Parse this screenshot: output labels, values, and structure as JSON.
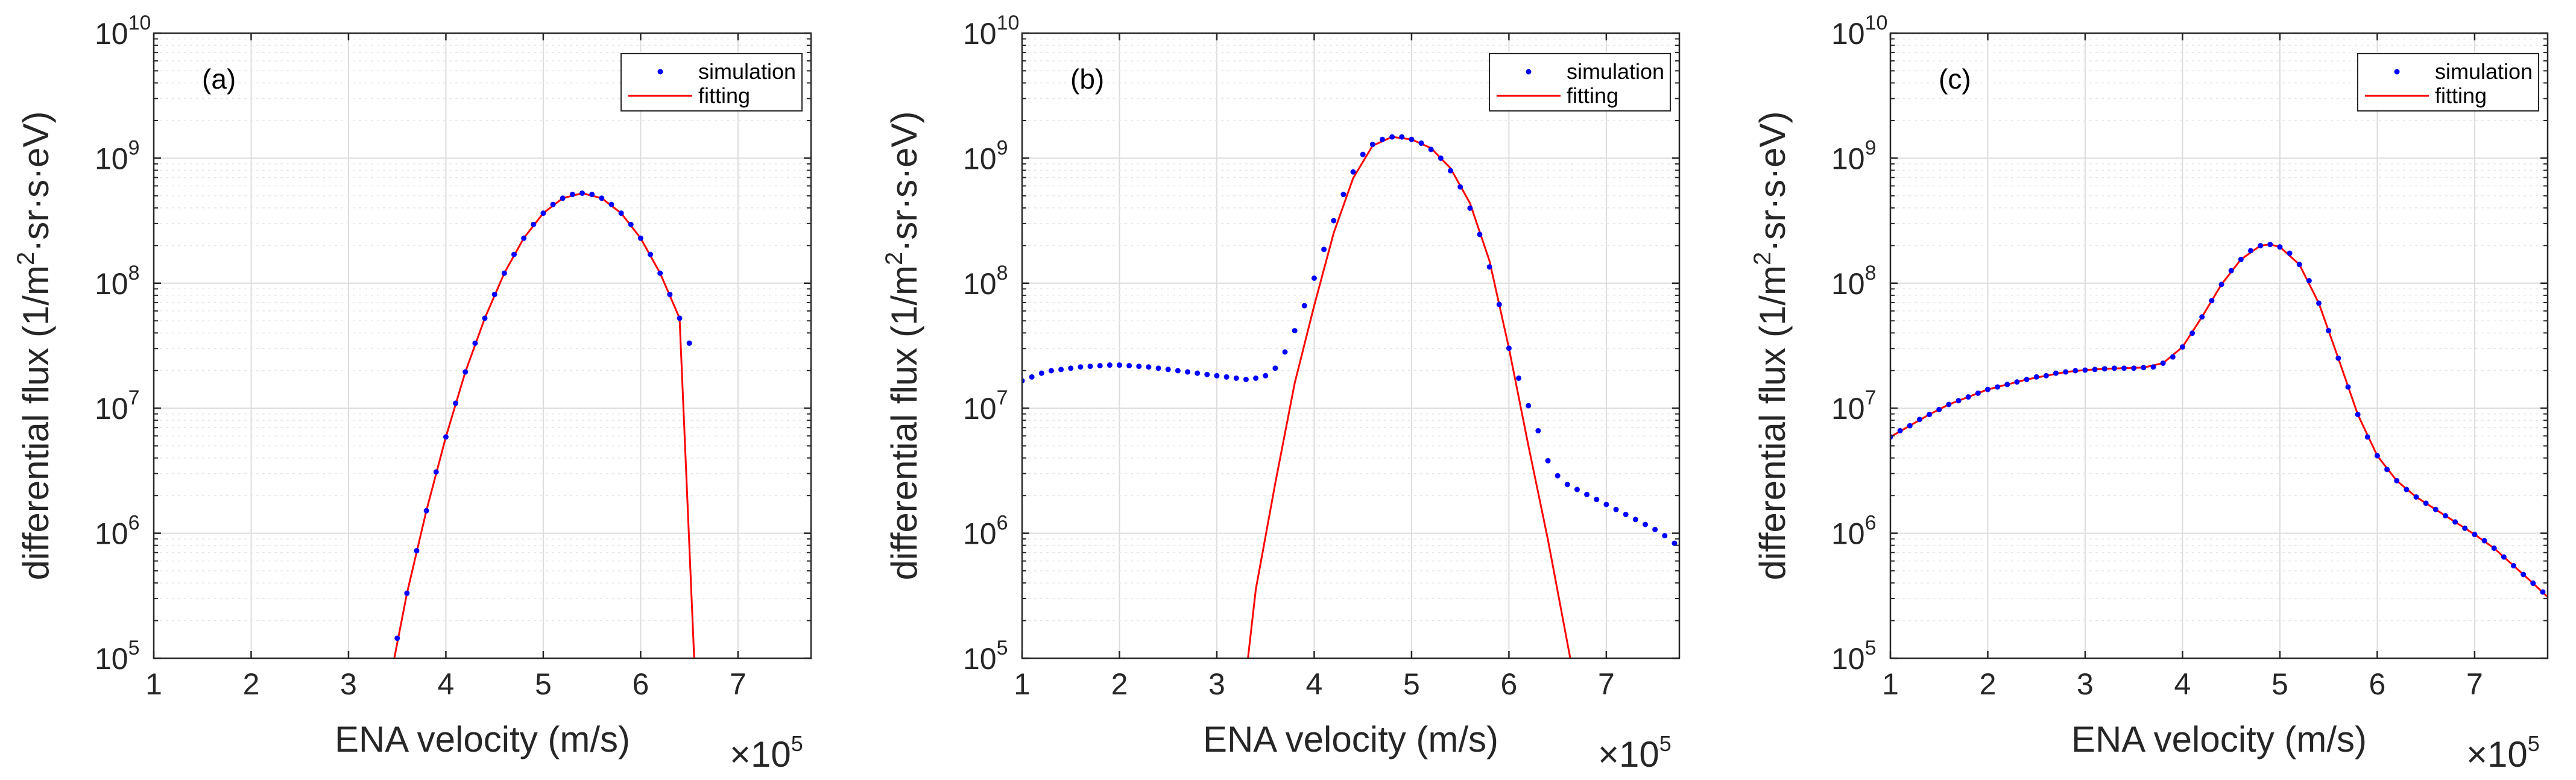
{
  "figure": {
    "x_exponent_prefix": "×10",
    "x_exponent": "5",
    "y_tick_base": "10"
  },
  "chart_data": [
    {
      "type": "scatter",
      "panel_label": "(a)",
      "xlabel": "ENA velocity (m/s)",
      "ylabel_prefix": "differential flux (1/m",
      "ylabel_sup": "2",
      "ylabel_suffix": "·sr·s·eV)",
      "xlim": [
        1,
        7.75
      ],
      "ylim_log10": [
        5,
        10
      ],
      "x_ticks": [
        1,
        2,
        3,
        4,
        5,
        6,
        7
      ],
      "y_ticks_exponent": [
        5,
        6,
        7,
        8,
        9,
        10
      ],
      "grid": true,
      "legend": {
        "position": "top-right",
        "entries": [
          "simulation",
          "fitting"
        ]
      },
      "series": [
        {
          "name": "simulation",
          "style": "dots",
          "color": "#0000ff",
          "x": [
            3.5,
            3.6,
            3.7,
            3.8,
            3.9,
            4.0,
            4.1,
            4.2,
            4.3,
            4.4,
            4.5,
            4.6,
            4.7,
            4.8,
            4.9,
            5.0,
            5.1,
            5.2,
            5.3,
            5.4,
            5.5,
            5.6,
            5.7,
            5.8,
            5.9,
            6.0,
            6.1,
            6.2,
            6.3,
            6.4,
            6.5
          ],
          "log10_y": [
            5.16,
            5.52,
            5.86,
            6.18,
            6.49,
            6.77,
            7.04,
            7.29,
            7.52,
            7.72,
            7.91,
            8.08,
            8.23,
            8.36,
            8.47,
            8.56,
            8.63,
            8.68,
            8.71,
            8.72,
            8.71,
            8.68,
            8.63,
            8.56,
            8.47,
            8.36,
            8.23,
            8.08,
            7.91,
            7.72,
            7.52
          ]
        },
        {
          "name": "fitting",
          "style": "line",
          "color": "#ff0000",
          "x": [
            3.47,
            3.6,
            3.8,
            4.0,
            4.2,
            4.4,
            4.6,
            4.8,
            5.0,
            5.2,
            5.4,
            5.6,
            5.8,
            6.0,
            6.2,
            6.4,
            6.55
          ],
          "log10_y": [
            5.0,
            5.52,
            6.18,
            6.77,
            7.29,
            7.72,
            8.08,
            8.36,
            8.56,
            8.68,
            8.72,
            8.68,
            8.56,
            8.36,
            8.08,
            7.72,
            5.0
          ]
        }
      ]
    },
    {
      "type": "scatter",
      "panel_label": "(b)",
      "xlabel": "ENA velocity (m/s)",
      "ylabel_prefix": "differential flux (1/m",
      "ylabel_sup": "2",
      "ylabel_suffix": "·sr·s·eV)",
      "xlim": [
        1,
        7.75
      ],
      "ylim_log10": [
        5,
        10
      ],
      "x_ticks": [
        1,
        2,
        3,
        4,
        5,
        6,
        7
      ],
      "y_ticks_exponent": [
        5,
        6,
        7,
        8,
        9,
        10
      ],
      "grid": true,
      "legend": {
        "position": "top-right",
        "entries": [
          "simulation",
          "fitting"
        ]
      },
      "series": [
        {
          "name": "simulation",
          "style": "dots",
          "color": "#0000ff",
          "x": [
            1.0,
            1.1,
            1.2,
            1.3,
            1.4,
            1.5,
            1.6,
            1.7,
            1.8,
            1.9,
            2.0,
            2.1,
            2.2,
            2.3,
            2.4,
            2.5,
            2.6,
            2.7,
            2.8,
            2.9,
            3.0,
            3.1,
            3.2,
            3.3,
            3.4,
            3.5,
            3.6,
            3.7,
            3.8,
            3.9,
            4.0,
            4.1,
            4.2,
            4.3,
            4.4,
            4.5,
            4.6,
            4.7,
            4.8,
            4.9,
            5.0,
            5.1,
            5.2,
            5.3,
            5.4,
            5.5,
            5.6,
            5.7,
            5.8,
            5.9,
            6.0,
            6.1,
            6.2,
            6.3,
            6.4,
            6.5,
            6.6,
            6.7,
            6.8,
            6.9,
            7.0,
            7.1,
            7.2,
            7.3,
            7.4,
            7.5,
            7.6,
            7.7
          ],
          "log10_y": [
            7.22,
            7.25,
            7.28,
            7.3,
            7.31,
            7.32,
            7.33,
            7.335,
            7.34,
            7.345,
            7.345,
            7.34,
            7.335,
            7.33,
            7.32,
            7.31,
            7.3,
            7.29,
            7.28,
            7.27,
            7.26,
            7.25,
            7.24,
            7.23,
            7.24,
            7.26,
            7.32,
            7.45,
            7.62,
            7.82,
            8.04,
            8.27,
            8.5,
            8.71,
            8.89,
            9.03,
            9.11,
            9.15,
            9.17,
            9.17,
            9.15,
            9.12,
            9.07,
            9.0,
            8.9,
            8.77,
            8.6,
            8.39,
            8.13,
            7.83,
            7.48,
            7.24,
            7.02,
            6.82,
            6.58,
            6.46,
            6.39,
            6.35,
            6.31,
            6.27,
            6.23,
            6.19,
            6.15,
            6.11,
            6.07,
            6.03,
            5.98,
            5.92
          ]
        },
        {
          "name": "fitting",
          "style": "line",
          "color": "#ff0000",
          "x": [
            3.32,
            3.4,
            3.6,
            3.8,
            4.0,
            4.2,
            4.4,
            4.6,
            4.8,
            5.0,
            5.2,
            5.4,
            5.6,
            5.8,
            6.0,
            6.2,
            6.4,
            6.63
          ],
          "log10_y": [
            5.0,
            5.55,
            6.4,
            7.2,
            7.82,
            8.4,
            8.84,
            9.1,
            9.17,
            9.15,
            9.08,
            8.92,
            8.64,
            8.18,
            7.48,
            6.7,
            5.95,
            5.0
          ]
        }
      ]
    },
    {
      "type": "scatter",
      "panel_label": "(c)",
      "xlabel": "ENA velocity (m/s)",
      "ylabel_prefix": "differential flux (1/m",
      "ylabel_sup": "2",
      "ylabel_suffix": "·sr·s·eV)",
      "xlim": [
        1,
        7.75
      ],
      "ylim_log10": [
        5,
        10
      ],
      "x_ticks": [
        1,
        2,
        3,
        4,
        5,
        6,
        7
      ],
      "y_ticks_exponent": [
        5,
        6,
        7,
        8,
        9,
        10
      ],
      "grid": true,
      "legend": {
        "position": "top-right",
        "entries": [
          "simulation",
          "fitting"
        ]
      },
      "series": [
        {
          "name": "simulation",
          "style": "dots",
          "color": "#0000ff",
          "x": [
            1.0,
            1.1,
            1.2,
            1.3,
            1.4,
            1.5,
            1.6,
            1.7,
            1.8,
            1.9,
            2.0,
            2.1,
            2.2,
            2.3,
            2.4,
            2.5,
            2.6,
            2.7,
            2.8,
            2.9,
            3.0,
            3.1,
            3.2,
            3.3,
            3.4,
            3.5,
            3.6,
            3.7,
            3.8,
            3.9,
            4.0,
            4.1,
            4.2,
            4.3,
            4.4,
            4.5,
            4.6,
            4.7,
            4.8,
            4.9,
            5.0,
            5.1,
            5.2,
            5.3,
            5.4,
            5.5,
            5.6,
            5.7,
            5.8,
            5.9,
            6.0,
            6.1,
            6.2,
            6.3,
            6.4,
            6.5,
            6.6,
            6.7,
            6.8,
            6.9,
            7.0,
            7.1,
            7.2,
            7.3,
            7.4,
            7.5,
            7.6,
            7.7
          ],
          "log10_y": [
            6.77,
            6.82,
            6.86,
            6.91,
            6.95,
            6.99,
            7.03,
            7.06,
            7.09,
            7.12,
            7.15,
            7.17,
            7.19,
            7.21,
            7.23,
            7.25,
            7.26,
            7.28,
            7.29,
            7.3,
            7.305,
            7.31,
            7.315,
            7.32,
            7.32,
            7.32,
            7.325,
            7.33,
            7.36,
            7.41,
            7.49,
            7.6,
            7.73,
            7.86,
            7.99,
            8.1,
            8.19,
            8.26,
            8.3,
            8.31,
            8.29,
            8.24,
            8.15,
            8.02,
            7.84,
            7.62,
            7.4,
            7.17,
            6.95,
            6.77,
            6.62,
            6.51,
            6.42,
            6.35,
            6.29,
            6.24,
            6.19,
            6.14,
            6.09,
            6.04,
            5.99,
            5.94,
            5.88,
            5.81,
            5.74,
            5.67,
            5.6,
            5.53
          ]
        },
        {
          "name": "fitting",
          "style": "line",
          "color": "#ff0000",
          "x": [
            1.0,
            1.2,
            1.4,
            1.6,
            1.8,
            2.0,
            2.2,
            2.4,
            2.6,
            2.8,
            3.0,
            3.2,
            3.4,
            3.6,
            3.8,
            4.0,
            4.2,
            4.4,
            4.6,
            4.8,
            4.9,
            5.0,
            5.2,
            5.4,
            5.6,
            5.8,
            6.0,
            6.2,
            6.4,
            6.6,
            6.8,
            7.0,
            7.2,
            7.4,
            7.6,
            7.75
          ],
          "log10_y": [
            6.77,
            6.86,
            6.95,
            7.03,
            7.09,
            7.15,
            7.19,
            7.23,
            7.26,
            7.29,
            7.305,
            7.315,
            7.32,
            7.325,
            7.36,
            7.49,
            7.73,
            7.99,
            8.19,
            8.3,
            8.31,
            8.29,
            8.15,
            7.84,
            7.4,
            6.95,
            6.62,
            6.42,
            6.29,
            6.19,
            6.09,
            5.99,
            5.88,
            5.74,
            5.6,
            5.49
          ]
        }
      ]
    }
  ]
}
